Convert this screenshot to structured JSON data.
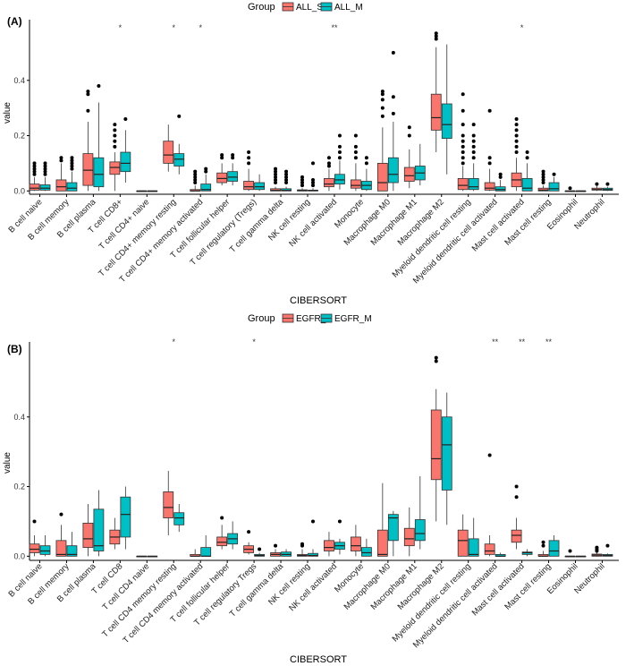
{
  "colors": {
    "s": "#F8766D",
    "m": "#00BFC4",
    "axis": "#000000"
  },
  "chart_data": [
    {
      "type": "boxplot",
      "panel_label": "(A)",
      "legend_title": "Group",
      "legend_position": "top",
      "xlabel": "CIBERSORT",
      "ylabel": "value",
      "ylim": [
        -0.012,
        0.6
      ],
      "yticks": [
        0.0,
        0.2,
        0.4
      ],
      "ytick_labels": [
        "0.0",
        "0.2",
        "0.4"
      ],
      "series": [
        {
          "name": "ALL_S",
          "color": "#F8766D"
        },
        {
          "name": "ALL_M",
          "color": "#00BFC4"
        }
      ],
      "categories": [
        "B cell naive",
        "B cell memory",
        "B cell plasma",
        "T cell CD8+",
        "T cell CD4+ naive",
        "T cell CD4+ memory resting",
        "T cell CD4+ memory activated",
        "T cell follicular helper",
        "T cell regulatory (Tregs)",
        "T cell gamma delta",
        "NK cell resting",
        "NK cell activated",
        "Monocyte",
        "Macrophage M0",
        "Macrophage M1",
        "Macrophage M2",
        "Myeloid dendritic cell resting",
        "Myeloid dendritic cell activated",
        "Mast cell activated",
        "Mast cell resting",
        "Eosinophil",
        "Neutrophil"
      ],
      "significance": [
        "",
        "",
        "",
        "*",
        "",
        "*",
        "*",
        "",
        "",
        "",
        "",
        "**",
        "",
        "",
        "",
        "",
        "",
        "",
        "*",
        "",
        "",
        ""
      ],
      "boxes": [
        [
          [
            0,
            0.003,
            0.01,
            0.025,
            0.05,
            [
              0.06,
              0.07,
              0.08,
              0.09,
              0.1
            ]
          ],
          [
            0,
            0.003,
            0.01,
            0.022,
            0.05,
            [
              0.06,
              0.07,
              0.08,
              0.09,
              0.1
            ]
          ]
        ],
        [
          [
            0,
            0,
            0.015,
            0.04,
            0.1,
            [
              0.11,
              0.12
            ]
          ],
          [
            0,
            0,
            0.01,
            0.03,
            0.07,
            [
              0.08,
              0.09,
              0.1,
              0.11,
              0.12
            ]
          ]
        ],
        [
          [
            0,
            0.02,
            0.075,
            0.135,
            0.25,
            [
              0.29,
              0.35,
              0.36
            ]
          ],
          [
            0,
            0.015,
            0.06,
            0.12,
            0.32,
            [
              0.38
            ]
          ]
        ],
        [
          [
            0,
            0.06,
            0.085,
            0.105,
            0.14,
            [
              0.16,
              0.18,
              0.2,
              0.22,
              0.24
            ]
          ],
          [
            0.03,
            0.07,
            0.1,
            0.14,
            0.22,
            [
              0.26
            ]
          ]
        ],
        [
          [
            0,
            0,
            0,
            0,
            0,
            []
          ],
          [
            0,
            0,
            0,
            0,
            0,
            []
          ]
        ],
        [
          [
            0.07,
            0.1,
            0.13,
            0.18,
            0.24,
            []
          ],
          [
            0.06,
            0.09,
            0.115,
            0.135,
            0.17,
            [
              0.27
            ]
          ]
        ],
        [
          [
            0,
            0,
            0,
            0.005,
            0.02,
            [
              0.03,
              0.04,
              0.05,
              0.06,
              0.07
            ]
          ],
          [
            0,
            0,
            0.005,
            0.025,
            0.06,
            [
              0.07,
              0.08
            ]
          ]
        ],
        [
          [
            0.02,
            0.03,
            0.045,
            0.065,
            0.1,
            [
              0.12,
              0.13
            ]
          ],
          [
            0.02,
            0.035,
            0.05,
            0.07,
            0.1,
            [
              0.12,
              0.13
            ]
          ]
        ],
        [
          [
            0,
            0.005,
            0.015,
            0.035,
            0.08,
            [
              0.1,
              0.12,
              0.14
            ]
          ],
          [
            0,
            0.005,
            0.015,
            0.03,
            0.06,
            []
          ]
        ],
        [
          [
            0,
            0,
            0.002,
            0.008,
            0.015,
            [
              0.03,
              0.04,
              0.05,
              0.06,
              0.07,
              0.08
            ]
          ],
          [
            0,
            0,
            0.002,
            0.008,
            0.015,
            [
              0.03,
              0.04,
              0.05,
              0.06,
              0.07
            ]
          ]
        ],
        [
          [
            0,
            0,
            0.001,
            0.004,
            0.01,
            [
              0.02,
              0.03,
              0.04,
              0.05
            ]
          ],
          [
            0,
            0,
            0.001,
            0.003,
            0.01,
            [
              0.02,
              0.03,
              0.04,
              0.1
            ]
          ]
        ],
        [
          [
            0,
            0.015,
            0.025,
            0.045,
            0.08,
            [
              0.09,
              0.1,
              0.12
            ]
          ],
          [
            0.005,
            0.025,
            0.04,
            0.06,
            0.11,
            [
              0.12,
              0.14,
              0.16,
              0.2
            ]
          ]
        ],
        [
          [
            0,
            0.01,
            0.02,
            0.04,
            0.1,
            [
              0.12,
              0.14,
              0.16,
              0.2
            ]
          ],
          [
            0,
            0.005,
            0.02,
            0.035,
            0.08,
            [
              0.1,
              0.12
            ]
          ]
        ],
        [
          [
            0,
            0,
            0.03,
            0.1,
            0.23,
            [
              0.27,
              0.3,
              0.33,
              0.35,
              0.36
            ]
          ],
          [
            0,
            0.03,
            0.06,
            0.12,
            0.25,
            [
              0.28,
              0.34,
              0.5
            ]
          ]
        ],
        [
          [
            0.01,
            0.035,
            0.055,
            0.085,
            0.15,
            [
              0.2,
              0.23
            ]
          ],
          [
            0.02,
            0.04,
            0.065,
            0.09,
            0.17,
            []
          ]
        ],
        [
          [
            0.14,
            0.22,
            0.265,
            0.35,
            0.52,
            [
              0.55,
              0.56,
              0.57
            ]
          ],
          [
            0.06,
            0.19,
            0.24,
            0.315,
            0.53,
            []
          ]
        ],
        [
          [
            0,
            0.005,
            0.02,
            0.045,
            0.09,
            [
              0.1,
              0.12,
              0.14,
              0.16,
              0.18,
              0.2,
              0.24,
              0.29,
              0.35
            ]
          ],
          [
            0,
            0.005,
            0.015,
            0.045,
            0.1,
            [
              0.12,
              0.14,
              0.16,
              0.18,
              0.2,
              0.24
            ]
          ]
        ],
        [
          [
            0,
            0.003,
            0.01,
            0.03,
            0.08,
            [
              0.1,
              0.12,
              0.29
            ]
          ],
          [
            0,
            0,
            0.005,
            0.015,
            0.04,
            [
              0.05,
              0.06
            ]
          ]
        ],
        [
          [
            0,
            0.015,
            0.04,
            0.065,
            0.12,
            [
              0.14,
              0.16,
              0.18,
              0.2,
              0.22,
              0.24,
              0.26
            ]
          ],
          [
            0,
            0,
            0.01,
            0.045,
            0.1,
            [
              0.12,
              0.14
            ]
          ]
        ],
        [
          [
            0,
            0,
            0.003,
            0.01,
            0.02,
            [
              0.03,
              0.04,
              0.05,
              0.06,
              0.07
            ]
          ],
          [
            0,
            0,
            0.008,
            0.03,
            0.05,
            [
              0.06
            ]
          ]
        ],
        [
          [
            0,
            0,
            0,
            0,
            0,
            [
              0.01
            ]
          ],
          [
            0,
            0,
            0,
            0,
            0,
            []
          ]
        ],
        [
          [
            0,
            0.003,
            0.005,
            0.01,
            0.018,
            [
              0.025
            ]
          ],
          [
            0,
            0.002,
            0.005,
            0.01,
            0.015,
            [
              0.025
            ]
          ]
        ]
      ]
    },
    {
      "type": "boxplot",
      "panel_label": "(B)",
      "legend_title": "Group",
      "legend_position": "top",
      "xlabel": "CIBERSORT",
      "ylabel": "value",
      "ylim": [
        -0.012,
        0.6
      ],
      "yticks": [
        0.0,
        0.2,
        0.4
      ],
      "ytick_labels": [
        "0.0",
        "0.2",
        "0.4"
      ],
      "series": [
        {
          "name": "EGFR_S",
          "color": "#F8766D"
        },
        {
          "name": "EGFR_M",
          "color": "#00BFC4"
        }
      ],
      "categories": [
        "B cell naive",
        "B cell memory",
        "B cell plasma",
        "T cell CD8",
        "T cell CD4 naive",
        "T cell CD4 memory resting",
        "T cell CD4 memory activated",
        "T cell follicular helper",
        "T cell regulatory Tregs",
        "T cell gamma delta",
        "NK cell resting",
        "NK cell activated",
        "Monocyte",
        "Macrophage M0",
        "Macrophage M1",
        "Macrophage M2",
        "Myeloid dendritic cell resting",
        "Myeloid dendritic cell activated",
        "Mast cell activated",
        "Mast cell resting",
        "Eosinophil",
        "Neutrophil"
      ],
      "significance": [
        "",
        "",
        "",
        "",
        "",
        "*",
        "",
        "",
        "*",
        "",
        "",
        "",
        "",
        "",
        "",
        "",
        "",
        "**",
        "**",
        "**",
        "",
        ""
      ],
      "boxes": [
        [
          [
            0,
            0.01,
            0.02,
            0.035,
            0.06,
            [
              0.1
            ]
          ],
          [
            0,
            0.005,
            0.015,
            0.03,
            0.06,
            []
          ]
        ],
        [
          [
            0,
            0,
            0.005,
            0.045,
            0.09,
            [
              0.12
            ]
          ],
          [
            0,
            0,
            0.005,
            0.03,
            0.07,
            []
          ]
        ],
        [
          [
            0,
            0.025,
            0.05,
            0.095,
            0.15,
            []
          ],
          [
            0,
            0.015,
            0.03,
            0.135,
            0.19,
            []
          ]
        ],
        [
          [
            0.02,
            0.035,
            0.055,
            0.075,
            0.11,
            []
          ],
          [
            0.02,
            0.055,
            0.12,
            0.17,
            0.2,
            []
          ]
        ],
        [
          [
            0,
            0,
            0,
            0,
            0,
            []
          ],
          [
            0,
            0,
            0,
            0,
            0,
            []
          ]
        ],
        [
          [
            0.06,
            0.11,
            0.14,
            0.185,
            0.245,
            []
          ],
          [
            0.07,
            0.09,
            0.11,
            0.125,
            0.15,
            []
          ]
        ],
        [
          [
            0,
            0,
            0,
            0.005,
            0.02,
            []
          ],
          [
            0,
            0,
            0,
            0.025,
            0.06,
            []
          ]
        ],
        [
          [
            0.02,
            0.03,
            0.04,
            0.055,
            0.09,
            [
              0.11
            ]
          ],
          [
            0.02,
            0.035,
            0.05,
            0.065,
            0.1,
            []
          ]
        ],
        [
          [
            0.005,
            0.01,
            0.02,
            0.03,
            0.04,
            [
              0.07
            ]
          ],
          [
            0,
            0,
            0.002,
            0.005,
            0.01,
            [
              0.02
            ]
          ]
        ],
        [
          [
            0,
            0,
            0.005,
            0.01,
            0.02,
            [
              0.03
            ]
          ],
          [
            0,
            0,
            0.005,
            0.012,
            0.02,
            []
          ]
        ],
        [
          [
            0,
            0,
            0.002,
            0.005,
            0.02,
            [
              0.03,
              0.035
            ]
          ],
          [
            0,
            0,
            0.002,
            0.008,
            0.02,
            [
              0.1
            ]
          ]
        ],
        [
          [
            0,
            0.015,
            0.025,
            0.045,
            0.07,
            []
          ],
          [
            0.005,
            0.02,
            0.03,
            0.04,
            0.05,
            [
              0.1
            ]
          ]
        ],
        [
          [
            0,
            0.015,
            0.03,
            0.055,
            0.09,
            []
          ],
          [
            0,
            0,
            0.01,
            0.025,
            0.05,
            []
          ]
        ],
        [
          [
            0,
            0,
            0.005,
            0.075,
            0.21,
            []
          ],
          [
            0,
            0.045,
            0.11,
            0.12,
            0.13,
            []
          ]
        ],
        [
          [
            0,
            0.03,
            0.05,
            0.08,
            0.14,
            []
          ],
          [
            0.02,
            0.045,
            0.065,
            0.105,
            0.23,
            []
          ]
        ],
        [
          [
            0.1,
            0.22,
            0.28,
            0.42,
            0.48,
            [
              0.56,
              0.57
            ]
          ],
          [
            0.09,
            0.19,
            0.32,
            0.4,
            0.47,
            []
          ]
        ],
        [
          [
            0,
            0,
            0.045,
            0.075,
            0.12,
            []
          ],
          [
            0,
            0,
            0.005,
            0.05,
            0.11,
            []
          ]
        ],
        [
          [
            0,
            0.005,
            0.015,
            0.035,
            0.06,
            [
              0.29
            ]
          ],
          [
            0,
            0,
            0,
            0.005,
            0.01,
            []
          ]
        ],
        [
          [
            0.02,
            0.04,
            0.06,
            0.075,
            0.11,
            [
              0.17,
              0.2
            ]
          ],
          [
            0,
            0.005,
            0.01,
            0.012,
            0.02,
            []
          ]
        ],
        [
          [
            0,
            0,
            0,
            0.005,
            0.015,
            [
              0.03,
              0.04
            ]
          ],
          [
            0,
            0,
            0.015,
            0.045,
            0.06,
            []
          ]
        ],
        [
          [
            0,
            0,
            0,
            0,
            0,
            [
              0.015
            ]
          ],
          [
            0,
            0,
            0,
            0,
            0,
            []
          ]
        ],
        [
          [
            0,
            0,
            0.003,
            0.006,
            0.01,
            [
              0.015,
              0.02,
              0.025
            ]
          ],
          [
            0,
            0,
            0.002,
            0.005,
            0.008,
            [
              0.03
            ]
          ]
        ]
      ]
    }
  ]
}
